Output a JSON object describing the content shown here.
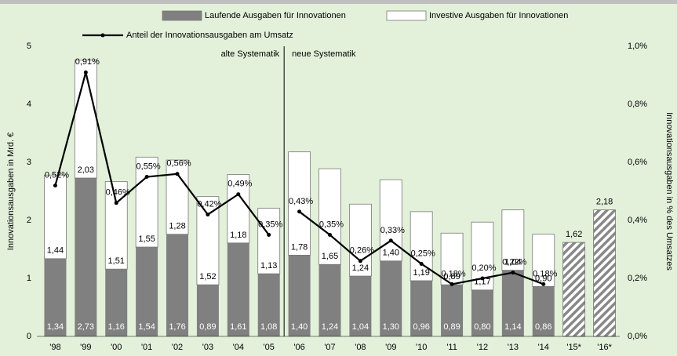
{
  "chart_data": {
    "type": "bar",
    "stacked": true,
    "categories": [
      "'98",
      "'99",
      "'00",
      "'01",
      "'02",
      "'03",
      "'04",
      "'05",
      "'06",
      "'07",
      "'08",
      "'09",
      "'10",
      "'11",
      "'12",
      "'13",
      "'14",
      "'15*",
      "'16*"
    ],
    "series": [
      {
        "name": "Laufende Ausgaben für Innovationen",
        "type": "bar",
        "color": "#808080",
        "values": [
          1.34,
          2.73,
          1.16,
          1.54,
          1.76,
          0.89,
          1.61,
          1.08,
          1.4,
          1.24,
          1.04,
          1.3,
          0.96,
          0.89,
          0.8,
          1.14,
          0.86,
          null,
          null
        ],
        "value_labels": [
          "1,34",
          "2,73",
          "1,16",
          "1,54",
          "1,76",
          "0,89",
          "1,61",
          "1,08",
          "1,40",
          "1,24",
          "1,04",
          "1,30",
          "0,96",
          "0,89",
          "0,80",
          "1,14",
          "0,86",
          null,
          null
        ]
      },
      {
        "name": "Investive Ausgaben für Innovationen",
        "type": "bar",
        "color": "#ffffff",
        "values": [
          1.44,
          2.03,
          1.51,
          1.55,
          1.28,
          1.52,
          1.18,
          1.13,
          1.78,
          1.65,
          1.24,
          1.4,
          1.19,
          0.89,
          1.17,
          1.04,
          0.9,
          null,
          null
        ],
        "value_labels": [
          "1,44",
          "2,03",
          "1,51",
          "1,55",
          "1,28",
          "1,52",
          "1,18",
          "1,13",
          "1,78",
          "1,65",
          "1,24",
          "1,40",
          "1,19",
          "0,89",
          "1,17",
          "1,04",
          "0,90",
          null,
          null
        ]
      },
      {
        "type": "bar",
        "color": "#ffffff",
        "pattern": "hatch",
        "values": [
          null,
          null,
          null,
          null,
          null,
          null,
          null,
          null,
          null,
          null,
          null,
          null,
          null,
          null,
          null,
          null,
          null,
          1.62,
          2.18
        ],
        "value_labels": [
          null,
          null,
          null,
          null,
          null,
          null,
          null,
          null,
          null,
          null,
          null,
          null,
          null,
          null,
          null,
          null,
          null,
          "1,62",
          "2,18"
        ]
      },
      {
        "name": "Anteil der Innovationsausgaben am Umsatz",
        "type": "line",
        "axis": "y2",
        "color": "#000000",
        "values": [
          0.52,
          0.91,
          0.46,
          0.55,
          0.56,
          0.42,
          0.49,
          0.35,
          0.43,
          0.35,
          0.26,
          0.33,
          0.25,
          0.18,
          0.2,
          0.22,
          0.18,
          null,
          null
        ],
        "value_labels": [
          "0,52%",
          "0,91%",
          "0,46%",
          "0,55%",
          "0,56%",
          "0,42%",
          "0,49%",
          "0,35%",
          "0,43%",
          "0,35%",
          "0,26%",
          "0,33%",
          "0,25%",
          "0,18%",
          "0,20%",
          "0,22%",
          "0,18%",
          null,
          null
        ]
      }
    ],
    "y_label": "Innovationsausgaben in Mrd. €",
    "y2_label": "Innovationsausgaben in % des Umsatzes",
    "ylim": [
      0,
      5
    ],
    "yticks": [
      0,
      1,
      2,
      3,
      4,
      5
    ],
    "y2lim": [
      0,
      1.0
    ],
    "y2ticks": [
      {
        "value": 0,
        "label": "0,0%"
      },
      {
        "value": 0.2,
        "label": "0,2%"
      },
      {
        "value": 0.4,
        "label": "0,4%"
      },
      {
        "value": 0.6,
        "label": "0,6%"
      },
      {
        "value": 0.8,
        "label": "0,8%"
      },
      {
        "value": 1.0,
        "label": "1,0%"
      }
    ],
    "divider": {
      "after": "'05"
    },
    "annotations": [
      {
        "text": "alte Systematik",
        "side": "left"
      },
      {
        "text": "neue Systematik",
        "side": "right"
      }
    ]
  }
}
